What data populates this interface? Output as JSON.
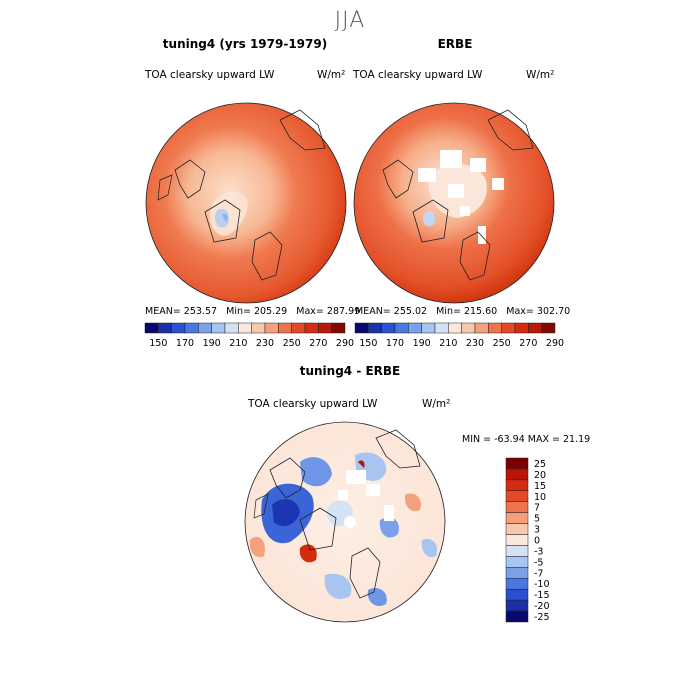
{
  "season": "JJA",
  "panels": [
    {
      "title": "tuning4 (yrs 1979-1979)",
      "variable": "TOA clearsky upward LW",
      "unit": "W/m²",
      "mean": "253.57",
      "min": "205.29",
      "max": "287.99"
    },
    {
      "title": "ERBE",
      "variable": "TOA clearsky upward LW",
      "unit": "W/m²",
      "mean": "255.02",
      "min": "215.60",
      "max": "302.70"
    }
  ],
  "top_colorbar": {
    "labels": [
      "150",
      "170",
      "190",
      "210",
      "230",
      "250",
      "270",
      "290"
    ],
    "colors": [
      "#08086e",
      "#1a2fa8",
      "#2850d0",
      "#4878e0",
      "#7aa0ea",
      "#a8c4f0",
      "#d4e2f6",
      "#fbe8dc",
      "#f8c8ac",
      "#f4a07c",
      "#ee7450",
      "#e44a28",
      "#d42c10",
      "#b81808",
      "#7c0a00"
    ]
  },
  "diff_panel": {
    "title": "tuning4 - ERBE",
    "variable": "TOA clearsky upward LW",
    "unit": "W/m²",
    "min_label": "MIN =",
    "min": "-63.94",
    "max_label": "MAX =",
    "max": "21.19"
  },
  "diff_colorbar": {
    "labels": [
      "25",
      "20",
      "15",
      "10",
      "7",
      "5",
      "3",
      "0",
      "-3",
      "-5",
      "-7",
      "-10",
      "-15",
      "-20",
      "-25"
    ],
    "colors": [
      "#7c0000",
      "#b81408",
      "#d42c10",
      "#e44a28",
      "#ee7450",
      "#f4a07c",
      "#f8c8ac",
      "#fbe8dc",
      "#d4e2f6",
      "#a8c4f0",
      "#7aa0ea",
      "#4878e0",
      "#2850d0",
      "#1a2fa8",
      "#08086e"
    ]
  }
}
